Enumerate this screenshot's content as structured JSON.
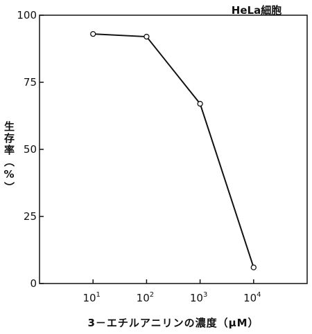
{
  "chart_data": {
    "type": "line",
    "title": "HeLa細胞",
    "xlabel": "3－エチルアニリンの濃度（μM）",
    "ylabel": "生存率（%）",
    "x_scale": "log",
    "x_tick_labels": [
      {
        "base": "10",
        "exp": "1"
      },
      {
        "base": "10",
        "exp": "2"
      },
      {
        "base": "10",
        "exp": "3"
      },
      {
        "base": "10",
        "exp": "4"
      }
    ],
    "x_ticks": [
      10,
      100,
      1000,
      10000
    ],
    "xlim": [
      1,
      100000
    ],
    "ylim": [
      0,
      100
    ],
    "y_ticks": [
      0,
      25,
      50,
      75,
      100
    ],
    "grid": false,
    "series": [
      {
        "x": [
          10,
          100,
          1000,
          10000
        ],
        "y": [
          93,
          92,
          67,
          6
        ]
      }
    ]
  }
}
